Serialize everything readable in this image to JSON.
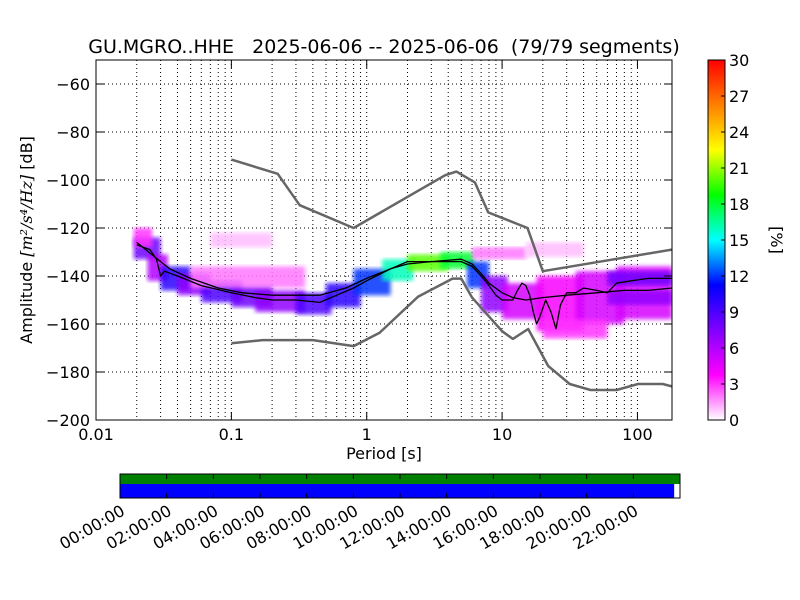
{
  "chart_data": [
    {
      "type": "heatmap",
      "title": "GU.MGRO..HHE   2025-06-06 -- 2025-06-06  (79/79 segments)",
      "xlabel": "Period [s]",
      "ylabel_prefix": "Amplitude ",
      "ylabel_unit": "[m²/s⁴/Hz]",
      "ylabel_suffix": " [dB]",
      "x_scale": "log",
      "xlim": [
        0.01,
        180
      ],
      "ylim": [
        -200,
        -50
      ],
      "x_ticks": [
        {
          "value": 0.01,
          "label": "0.01"
        },
        {
          "value": 0.1,
          "label": "0.1"
        },
        {
          "value": 1,
          "label": "1"
        },
        {
          "value": 10,
          "label": "10"
        },
        {
          "value": 100,
          "label": "100"
        }
      ],
      "y_ticks": [
        {
          "value": -60,
          "label": "−60"
        },
        {
          "value": -80,
          "label": "−80"
        },
        {
          "value": -100,
          "label": "−100"
        },
        {
          "value": -120,
          "label": "−120"
        },
        {
          "value": -140,
          "label": "−140"
        },
        {
          "value": -160,
          "label": "−160"
        },
        {
          "value": -180,
          "label": "−180"
        },
        {
          "value": -200,
          "label": "−200"
        }
      ],
      "grid": "dotted",
      "colorbar": {
        "label": "[%]",
        "range": [
          0,
          30
        ],
        "ticks": [
          "0",
          "3",
          "6",
          "9",
          "12",
          "15",
          "18",
          "21",
          "24",
          "27",
          "30"
        ],
        "colormap": [
          "#ffffff",
          "#ff00ff",
          "#8000ff",
          "#0000ff",
          "#00ffff",
          "#00ff00",
          "#ffff00",
          "#ff8000",
          "#ff0000"
        ]
      },
      "series": [
        {
          "key": "nhnm",
          "color": "#666666",
          "points": [
            [
              0.1,
              -91.5
            ],
            [
              0.22,
              -97.4
            ],
            [
              0.32,
              -110.5
            ],
            [
              0.8,
              -120
            ],
            [
              3.8,
              -98
            ],
            [
              4.6,
              -96.5
            ],
            [
              6.3,
              -101
            ],
            [
              7.9,
              -113.5
            ],
            [
              15.4,
              -120
            ],
            [
              20,
              -138
            ],
            [
              180,
              -129
            ]
          ]
        },
        {
          "key": "nlnm",
          "color": "#666666",
          "points": [
            [
              0.1,
              -168
            ],
            [
              0.17,
              -166.7
            ],
            [
              0.4,
              -166.7
            ],
            [
              0.8,
              -169.2
            ],
            [
              1.24,
              -163.7
            ],
            [
              2.4,
              -148.6
            ],
            [
              4.3,
              -141.1
            ],
            [
              5,
              -141.1
            ],
            [
              6,
              -149
            ],
            [
              10,
              -163
            ],
            [
              12,
              -166.2
            ],
            [
              15.6,
              -162.1
            ],
            [
              21.9,
              -177.5
            ],
            [
              31.6,
              -185
            ],
            [
              45,
              -187.5
            ],
            [
              70,
              -187.5
            ],
            [
              101,
              -185
            ],
            [
              154,
              -185
            ],
            [
              180,
              -186
            ]
          ]
        },
        {
          "key": "mode",
          "color": "#000000",
          "points": [
            [
              0.02,
              -127
            ],
            [
              0.025,
              -129
            ],
            [
              0.028,
              -133
            ],
            [
              0.03,
              -140
            ],
            [
              0.032,
              -138
            ],
            [
              0.04,
              -140
            ],
            [
              0.06,
              -144
            ],
            [
              0.1,
              -147
            ],
            [
              0.15,
              -149
            ],
            [
              0.2,
              -150
            ],
            [
              0.3,
              -150
            ],
            [
              0.45,
              -151
            ],
            [
              0.6,
              -148
            ],
            [
              0.8,
              -145
            ],
            [
              1,
              -142
            ],
            [
              1.5,
              -137
            ],
            [
              2,
              -134
            ],
            [
              3,
              -134
            ],
            [
              4,
              -134
            ],
            [
              5,
              -134
            ],
            [
              6,
              -136
            ],
            [
              7,
              -140
            ],
            [
              8,
              -144
            ],
            [
              9,
              -148
            ],
            [
              10,
              -150
            ],
            [
              11,
              -150
            ],
            [
              12,
              -150
            ],
            [
              13,
              -146
            ],
            [
              14,
              -143
            ],
            [
              15,
              -144
            ],
            [
              16,
              -148
            ],
            [
              17,
              -155
            ],
            [
              18,
              -160
            ],
            [
              19,
              -157
            ],
            [
              21,
              -150
            ],
            [
              23,
              -155
            ],
            [
              25,
              -162
            ],
            [
              27,
              -152
            ],
            [
              30,
              -147
            ],
            [
              35,
              -147
            ],
            [
              40,
              -145
            ],
            [
              50,
              -146
            ],
            [
              60,
              -147
            ],
            [
              70,
              -143
            ],
            [
              90,
              -142
            ],
            [
              120,
              -141
            ],
            [
              180,
              -141
            ]
          ]
        },
        {
          "key": "mean",
          "color": "#000000",
          "points": [
            [
              0.02,
              -126
            ],
            [
              0.03,
              -134
            ],
            [
              0.035,
              -137
            ],
            [
              0.05,
              -141
            ],
            [
              0.08,
              -145
            ],
            [
              0.12,
              -147
            ],
            [
              0.2,
              -148
            ],
            [
              0.3,
              -148
            ],
            [
              0.45,
              -148
            ],
            [
              0.7,
              -145
            ],
            [
              1,
              -141
            ],
            [
              1.5,
              -137
            ],
            [
              2,
              -135
            ],
            [
              3,
              -134
            ],
            [
              5,
              -133
            ],
            [
              6,
              -135
            ],
            [
              7,
              -139
            ],
            [
              8,
              -143
            ],
            [
              10,
              -147
            ],
            [
              12,
              -149
            ],
            [
              15,
              -150
            ],
            [
              20,
              -149
            ],
            [
              30,
              -148
            ],
            [
              50,
              -147
            ],
            [
              80,
              -146
            ],
            [
              120,
              -146
            ],
            [
              180,
              -145
            ]
          ]
        }
      ],
      "heatmap_bands": [
        {
          "x": [
            0.019,
            0.03
          ],
          "y": [
            -133,
            -124
          ],
          "pct": 8
        },
        {
          "x": [
            0.019,
            0.026
          ],
          "y": [
            -128,
            -120
          ],
          "pct": 3
        },
        {
          "x": [
            0.024,
            0.034
          ],
          "y": [
            -142,
            -131
          ],
          "pct": 6
        },
        {
          "x": [
            0.03,
            0.05
          ],
          "y": [
            -146,
            -136
          ],
          "pct": 10
        },
        {
          "x": [
            0.04,
            0.07
          ],
          "y": [
            -148,
            -139
          ],
          "pct": 7
        },
        {
          "x": [
            0.06,
            0.12
          ],
          "y": [
            -151,
            -142
          ],
          "pct": 9
        },
        {
          "x": [
            0.1,
            0.2
          ],
          "y": [
            -153,
            -144
          ],
          "pct": 8
        },
        {
          "x": [
            0.15,
            0.35
          ],
          "y": [
            -155,
            -146
          ],
          "pct": 7
        },
        {
          "x": [
            0.3,
            0.55
          ],
          "y": [
            -156,
            -147
          ],
          "pct": 9
        },
        {
          "x": [
            0.5,
            0.9
          ],
          "y": [
            -153,
            -143
          ],
          "pct": 10
        },
        {
          "x": [
            0.8,
            1.5
          ],
          "y": [
            -148,
            -137
          ],
          "pct": 12
        },
        {
          "x": [
            1.3,
            2.2
          ],
          "y": [
            -142,
            -133
          ],
          "pct": 16
        },
        {
          "x": [
            2,
            4
          ],
          "y": [
            -138,
            -131
          ],
          "pct": 20
        },
        {
          "x": [
            3.5,
            6.2
          ],
          "y": [
            -137,
            -130
          ],
          "pct": 18
        },
        {
          "x": [
            5.5,
            8
          ],
          "y": [
            -145,
            -134
          ],
          "pct": 12
        },
        {
          "x": [
            7,
            11
          ],
          "y": [
            -155,
            -140
          ],
          "pct": 7
        },
        {
          "x": [
            10,
            20
          ],
          "y": [
            -158,
            -143
          ],
          "pct": 5
        },
        {
          "x": [
            18,
            40
          ],
          "y": [
            -163,
            -140
          ],
          "pct": 4
        },
        {
          "x": [
            35,
            80
          ],
          "y": [
            -160,
            -138
          ],
          "pct": 5
        },
        {
          "x": [
            70,
            180
          ],
          "y": [
            -158,
            -136
          ],
          "pct": 5
        },
        {
          "x": [
            0.05,
            0.35
          ],
          "y": [
            -145,
            -136
          ],
          "pct": 2
        },
        {
          "x": [
            0.07,
            0.2
          ],
          "y": [
            -128,
            -122
          ],
          "pct": 1
        },
        {
          "x": [
            6,
            15
          ],
          "y": [
            -133,
            -128
          ],
          "pct": 2
        },
        {
          "x": [
            15,
            40
          ],
          "y": [
            -132,
            -126
          ],
          "pct": 1
        },
        {
          "x": [
            20,
            60
          ],
          "y": [
            -166,
            -158
          ],
          "pct": 3
        },
        {
          "x": [
            60,
            180
          ],
          "y": [
            -152,
            -146
          ],
          "pct": 7
        },
        {
          "x": [
            60,
            180
          ],
          "y": [
            -144,
            -138
          ],
          "pct": 8
        }
      ]
    },
    {
      "type": "coverage",
      "time_ticks": [
        "00:00:00",
        "02:00:00",
        "04:00:00",
        "06:00:00",
        "08:00:00",
        "10:00:00",
        "12:00:00",
        "14:00:00",
        "16:00:00",
        "18:00:00",
        "20:00:00",
        "22:00:00"
      ],
      "time_range_hours": [
        0,
        24
      ],
      "data_coverage_hours": [
        0,
        24
      ],
      "segments_coverage_hours": [
        0,
        23.75
      ],
      "colors": {
        "data": "#008000",
        "segments": "#0000ff"
      }
    }
  ]
}
